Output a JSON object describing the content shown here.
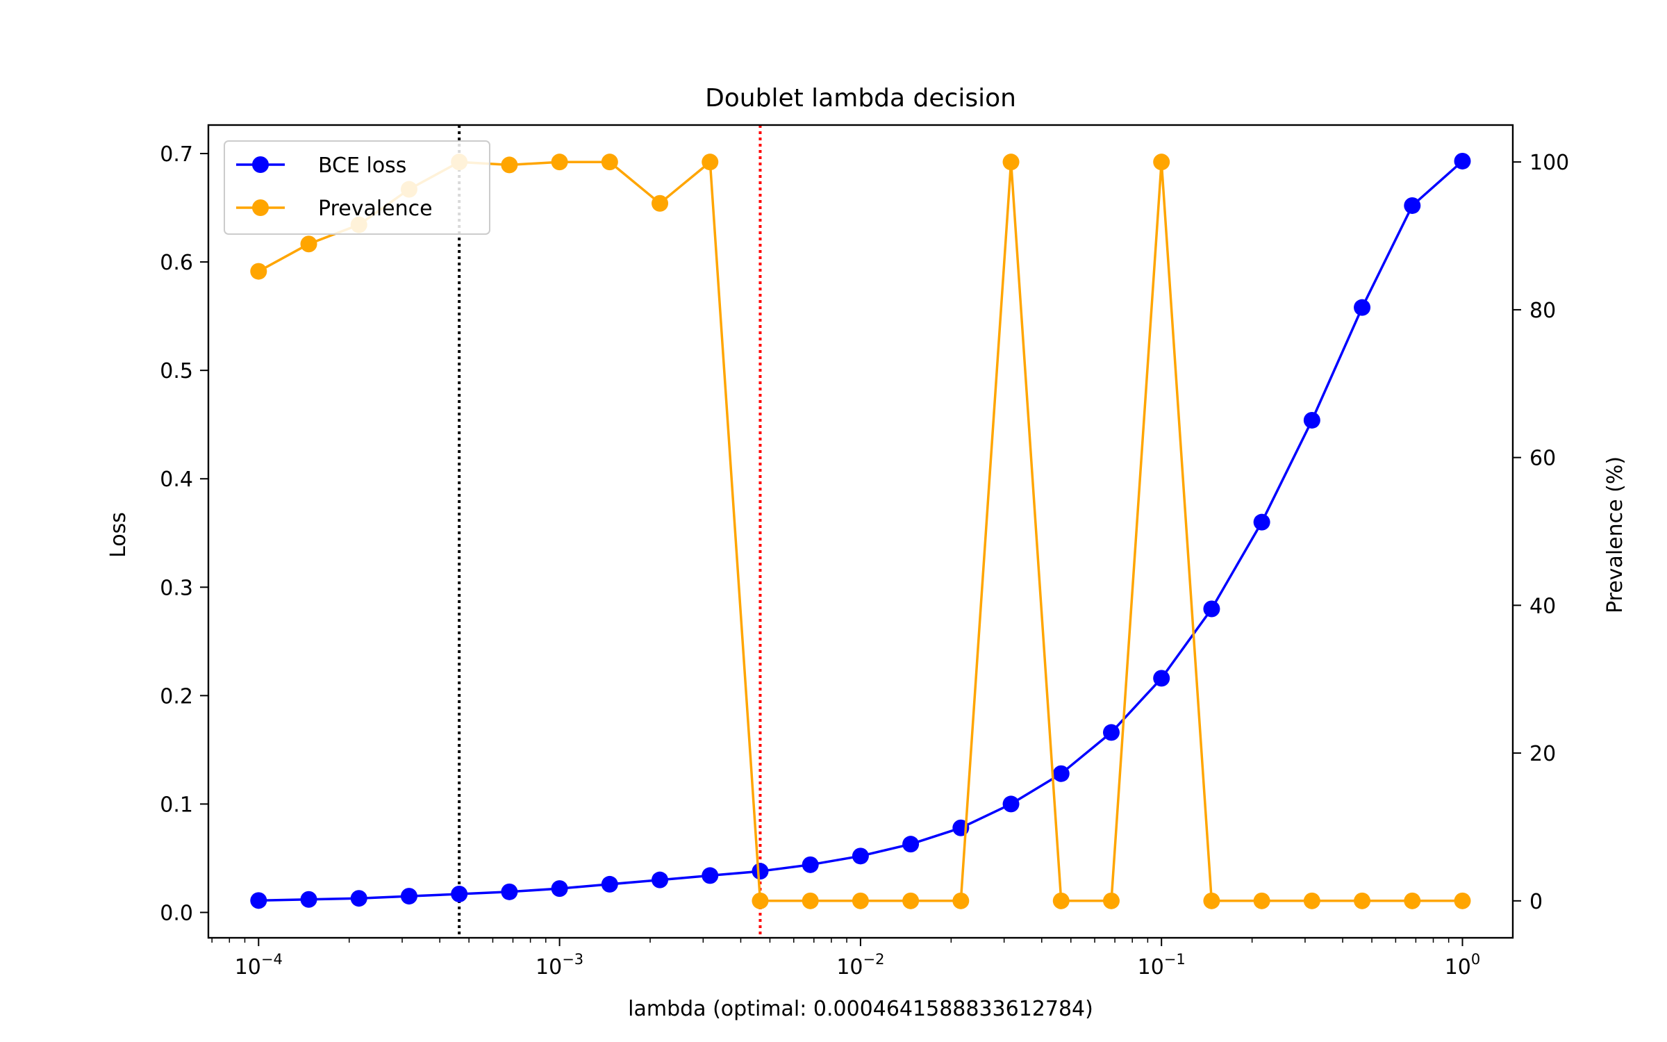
{
  "chart_data": {
    "type": "line",
    "title": "Doublet lambda decision",
    "xlabel": "lambda (optimal: 0.0004641588833612784)",
    "ylabel": "Loss",
    "y2label": "Prevalence (%)",
    "xscale": "log",
    "xlim": [
      6.81e-05,
      1.47
    ],
    "ylim": [
      -0.0234,
      0.7263
    ],
    "y2lim": [
      -5,
      105
    ],
    "xticks": [
      {
        "value": 0.0001,
        "base": "10",
        "exp": "−4"
      },
      {
        "value": 0.001,
        "base": "10",
        "exp": "−3"
      },
      {
        "value": 0.01,
        "base": "10",
        "exp": "−2"
      },
      {
        "value": 0.1,
        "base": "10",
        "exp": "−1"
      },
      {
        "value": 1,
        "base": "10",
        "exp": "0"
      }
    ],
    "yticks": [
      "0.0",
      "0.1",
      "0.2",
      "0.3",
      "0.4",
      "0.5",
      "0.6",
      "0.7"
    ],
    "y2ticks": [
      "0",
      "20",
      "40",
      "60",
      "80",
      "100"
    ],
    "grid": false,
    "legend_position": "top-left",
    "x": [
      0.0001,
      0.00014678,
      0.00021544,
      0.00031623,
      0.00046416,
      0.00068129,
      0.001,
      0.0014678,
      0.0021544,
      0.0031623,
      0.0046416,
      0.0068129,
      0.01,
      0.014678,
      0.021544,
      0.031623,
      0.046416,
      0.068129,
      0.1,
      0.14678,
      0.21544,
      0.31623,
      0.46416,
      0.68129,
      1.0
    ],
    "series": [
      {
        "name": "BCE loss",
        "axis": "left",
        "color": "#0000ff",
        "values": [
          0.011,
          0.012,
          0.013,
          0.015,
          0.017,
          0.019,
          0.022,
          0.026,
          0.03,
          0.034,
          0.038,
          0.044,
          0.052,
          0.063,
          0.078,
          0.1,
          0.128,
          0.166,
          0.216,
          0.28,
          0.36,
          0.454,
          0.558,
          0.652,
          0.693
        ]
      },
      {
        "name": "Prevalence",
        "axis": "right",
        "color": "#ffa500",
        "values": [
          85.2,
          88.9,
          91.5,
          96.3,
          100,
          99.6,
          100,
          100,
          94.4,
          100,
          0,
          0,
          0,
          0,
          0,
          100,
          0,
          0,
          100,
          0,
          0,
          0,
          0,
          0,
          0
        ]
      }
    ],
    "vlines": [
      {
        "x": 0.00046416,
        "color": "#000000",
        "style": "dotted"
      },
      {
        "x": 0.0046416,
        "color": "#ff0000",
        "style": "dotted"
      }
    ]
  }
}
